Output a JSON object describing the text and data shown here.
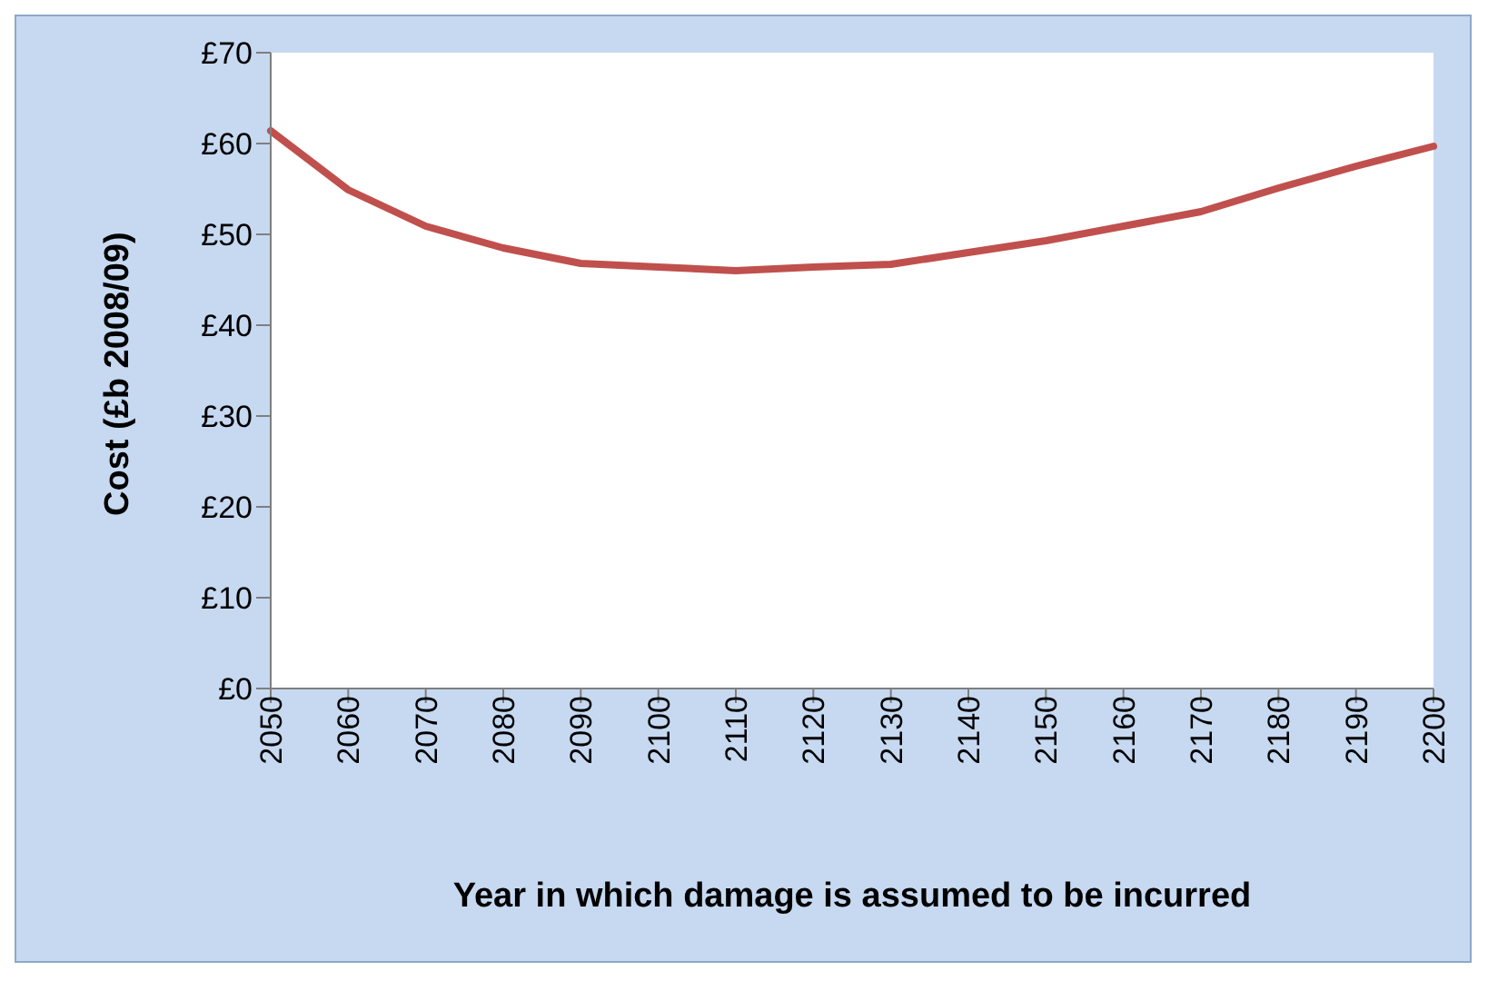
{
  "chart_data": {
    "type": "line",
    "xlabel": "Year in which damage is assumed to be incurred",
    "ylabel": "Cost (£b 2008/09)",
    "categories": [
      "2050",
      "2060",
      "2070",
      "2080",
      "2090",
      "2100",
      "2110",
      "2120",
      "2130",
      "2140",
      "2150",
      "2160",
      "2170",
      "2180",
      "2190",
      "2200"
    ],
    "series": [
      {
        "color": "#c0504d",
        "values": [
          61.4,
          54.9,
          50.9,
          48.5,
          46.8,
          46.4,
          46.0,
          46.4,
          46.7,
          48.0,
          49.3,
          50.9,
          52.5,
          55.1,
          57.5,
          59.7
        ]
      }
    ],
    "ylim": [
      0,
      70
    ],
    "yticks": [
      {
        "value": 0,
        "label": "£0"
      },
      {
        "value": 10,
        "label": "£10"
      },
      {
        "value": 20,
        "label": "£20"
      },
      {
        "value": 30,
        "label": "£30"
      },
      {
        "value": 40,
        "label": "£40"
      },
      {
        "value": 50,
        "label": "£50"
      },
      {
        "value": 60,
        "label": "£60"
      },
      {
        "value": 70,
        "label": "£70"
      }
    ],
    "grid": false,
    "legend": false,
    "marker": "none",
    "line_style": "solid"
  }
}
